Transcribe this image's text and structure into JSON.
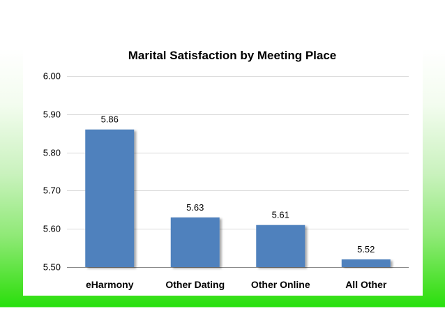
{
  "chart_data": {
    "type": "bar",
    "title": "Marital Satisfaction by Meeting Place",
    "xlabel": "",
    "ylabel": "",
    "categories": [
      "eHarmony",
      "Other Dating",
      "Other Online",
      "All Other"
    ],
    "values": [
      5.86,
      5.63,
      5.61,
      5.52
    ],
    "data_labels": [
      "5.86",
      "5.63",
      "5.61",
      "5.52"
    ],
    "ylim": [
      5.5,
      6.0
    ],
    "yticks": [
      "5.50",
      "5.60",
      "5.70",
      "5.80",
      "5.90",
      "6.00"
    ],
    "grid": true,
    "legend": "none",
    "bar_color": "#4F81BD",
    "grid_color": "#D9D9D9"
  }
}
